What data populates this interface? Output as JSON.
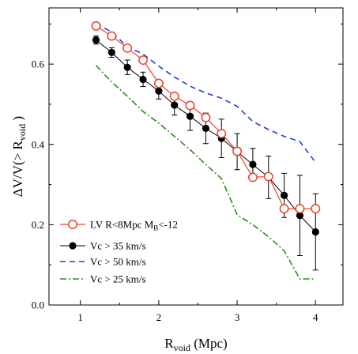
{
  "chart_data": {
    "type": "line",
    "title": "",
    "xlabel": {
      "main": "R",
      "sub": "void",
      "rest": " (Mpc)"
    },
    "ylabel": {
      "main": "ΔV/V(> R",
      "sub": "void",
      "rest": " )"
    },
    "xlim": [
      0.6,
      4.35
    ],
    "ylim": [
      0.0,
      0.74
    ],
    "xticks": [
      1,
      2,
      3,
      4
    ],
    "yticks": [
      0.0,
      0.2,
      0.4,
      0.6
    ],
    "xtick_labels": [
      "1",
      "2",
      "3",
      "4"
    ],
    "ytick_labels": [
      "0.0",
      "0.2",
      "0.4",
      "0.6"
    ],
    "grid": false,
    "legend_position": "bottom-left",
    "series": [
      {
        "key": "lv",
        "name": "LV R<8Mpc M",
        "name_sub": "B",
        "name_rest": "<-12",
        "color": "#e8432a",
        "style": "open-circle-line",
        "x": [
          1.2,
          1.4,
          1.6,
          1.8,
          2.0,
          2.2,
          2.4,
          2.6,
          2.8,
          3.0,
          3.2,
          3.4,
          3.6,
          3.8,
          4.0
        ],
        "y": [
          0.695,
          0.67,
          0.64,
          0.61,
          0.552,
          0.52,
          0.497,
          0.467,
          0.427,
          0.383,
          0.318,
          0.32,
          0.24,
          0.24,
          0.24
        ]
      },
      {
        "key": "vc35",
        "name": "Vc > 35 km/s",
        "color": "#000000",
        "style": "filled-circle-errorbar",
        "x": [
          1.2,
          1.4,
          1.6,
          1.8,
          2.0,
          2.2,
          2.4,
          2.6,
          2.8,
          3.0,
          3.2,
          3.4,
          3.6,
          3.8,
          4.0
        ],
        "y": [
          0.66,
          0.629,
          0.592,
          0.562,
          0.533,
          0.498,
          0.47,
          0.44,
          0.415,
          0.382,
          0.35,
          0.318,
          0.273,
          0.223,
          0.182
        ],
        "err": [
          0.01,
          0.012,
          0.018,
          0.018,
          0.02,
          0.025,
          0.035,
          0.038,
          0.048,
          0.045,
          0.04,
          0.053,
          0.055,
          0.1,
          0.095
        ]
      },
      {
        "key": "vc50",
        "name": "Vc > 50 km/s",
        "color": "#1f3fe0",
        "style": "dashed",
        "x": [
          1.2,
          1.4,
          1.6,
          1.8,
          2.0,
          2.2,
          2.4,
          2.6,
          2.8,
          3.0,
          3.2,
          3.4,
          3.6,
          3.8,
          4.0
        ],
        "y": [
          0.7,
          0.68,
          0.643,
          0.625,
          0.595,
          0.568,
          0.545,
          0.528,
          0.515,
          0.495,
          0.457,
          0.437,
          0.42,
          0.407,
          0.355
        ]
      },
      {
        "key": "vc25",
        "name": "Vc > 25 km/s",
        "color": "#2f8a1f",
        "style": "dash-dot",
        "x": [
          1.2,
          1.4,
          1.6,
          1.8,
          2.0,
          2.2,
          2.4,
          2.6,
          2.8,
          3.0,
          3.2,
          3.4,
          3.6,
          3.8,
          4.0
        ],
        "y": [
          0.597,
          0.555,
          0.52,
          0.482,
          0.453,
          0.42,
          0.387,
          0.35,
          0.315,
          0.225,
          0.2,
          0.17,
          0.135,
          0.065,
          0.065
        ]
      }
    ]
  }
}
